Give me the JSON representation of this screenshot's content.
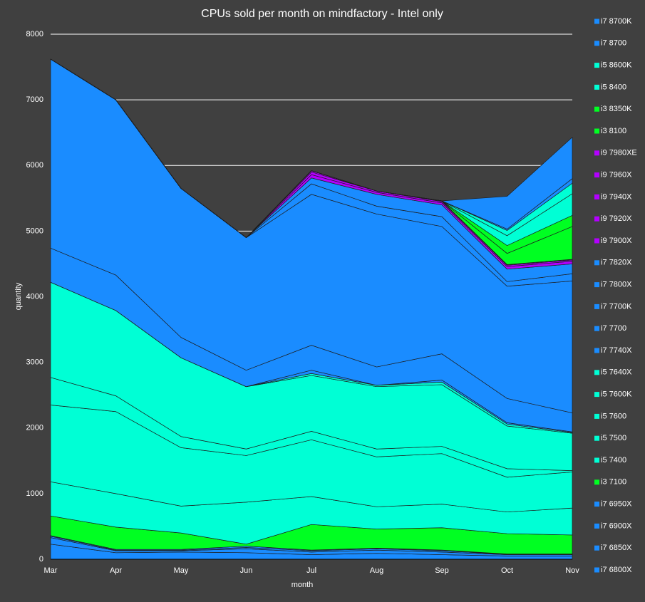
{
  "chart_data": {
    "type": "stacked_area",
    "title": "CPUs sold per month on mindfactory - Intel only",
    "x_label": "month",
    "y_label": "quantity",
    "categories": [
      "Mar",
      "Apr",
      "May",
      "Jun",
      "Jul",
      "Aug",
      "Sep",
      "Oct",
      "Nov"
    ],
    "ylim": [
      0,
      8000
    ],
    "yticks": [
      0,
      1000,
      2000,
      3000,
      4000,
      5000,
      6000,
      7000,
      8000
    ],
    "grid": true,
    "legend": "right",
    "series": [
      {
        "name": "i7 8700K",
        "color": "#1a8cff",
        "values": [
          0,
          0,
          0,
          0,
          0,
          0,
          0,
          500,
          630
        ]
      },
      {
        "name": "i7 8700",
        "color": "#1a8cff",
        "values": [
          0,
          0,
          0,
          0,
          0,
          0,
          0,
          20,
          70
        ]
      },
      {
        "name": "i5 8600K",
        "color": "#00ffd5",
        "values": [
          0,
          0,
          0,
          0,
          0,
          0,
          0,
          80,
          160
        ]
      },
      {
        "name": "i5 8400",
        "color": "#00ffd5",
        "values": [
          0,
          0,
          0,
          0,
          0,
          0,
          0,
          150,
          330
        ]
      },
      {
        "name": "i3 8350K",
        "color": "#00ff22",
        "values": [
          0,
          0,
          0,
          0,
          0,
          0,
          0,
          120,
          170
        ]
      },
      {
        "name": "i3 8100",
        "color": "#00ff22",
        "values": [
          0,
          0,
          0,
          0,
          0,
          0,
          0,
          170,
          500
        ]
      },
      {
        "name": "i9 7980XE",
        "color": "#b300ff",
        "values": [
          0,
          0,
          0,
          0,
          0,
          0,
          0,
          0,
          0
        ]
      },
      {
        "name": "i9 7960X",
        "color": "#b300ff",
        "values": [
          0,
          0,
          0,
          0,
          0,
          0,
          0,
          0,
          0
        ]
      },
      {
        "name": "i9 7940X",
        "color": "#b300ff",
        "values": [
          0,
          0,
          0,
          0,
          20,
          0,
          10,
          10,
          10
        ]
      },
      {
        "name": "i9 7920X",
        "color": "#b300ff",
        "values": [
          0,
          0,
          0,
          0,
          40,
          20,
          20,
          20,
          20
        ]
      },
      {
        "name": "i9 7900X",
        "color": "#b300ff",
        "values": [
          0,
          0,
          0,
          0,
          50,
          30,
          30,
          40,
          40
        ]
      },
      {
        "name": "i7 7820X",
        "color": "#1a8cff",
        "values": [
          0,
          0,
          0,
          0,
          90,
          180,
          180,
          190,
          150
        ]
      },
      {
        "name": "i7 7800X",
        "color": "#1a8cff",
        "values": [
          0,
          0,
          0,
          0,
          160,
          120,
          150,
          70,
          110
        ]
      },
      {
        "name": "i7 7700K",
        "color": "#1a8cff",
        "values": [
          2880,
          2670,
          2270,
          2020,
          2300,
          2330,
          1940,
          1710,
          2010
        ]
      },
      {
        "name": "i7 7700",
        "color": "#1a8cff",
        "values": [
          520,
          540,
          310,
          250,
          380,
          280,
          400,
          370,
          290
        ]
      },
      {
        "name": "i7 7740X",
        "color": "#1a8cff",
        "values": [
          0,
          0,
          0,
          0,
          50,
          0,
          30,
          20,
          10
        ]
      },
      {
        "name": "i5 7640X",
        "color": "#00ffd5",
        "values": [
          0,
          0,
          0,
          0,
          30,
          20,
          40,
          30,
          10
        ]
      },
      {
        "name": "i5 7600K",
        "color": "#00ffd5",
        "values": [
          1450,
          1300,
          1200,
          950,
          850,
          950,
          940,
          650,
          570
        ]
      },
      {
        "name": "i5 7600",
        "color": "#00ffd5",
        "values": [
          420,
          240,
          170,
          100,
          130,
          120,
          110,
          130,
          20
        ]
      },
      {
        "name": "i5 7500",
        "color": "#00ffd5",
        "values": [
          1170,
          1250,
          890,
          710,
          865,
          760,
          770,
          530,
          550
        ]
      },
      {
        "name": "i5 7400",
        "color": "#00ffd5",
        "values": [
          520,
          510,
          410,
          640,
          425,
          340,
          360,
          330,
          410
        ]
      },
      {
        "name": "i3 7100",
        "color": "#00ff22",
        "values": [
          300,
          340,
          250,
          30,
          390,
          290,
          340,
          310,
          290
        ]
      },
      {
        "name": "i7 6950X",
        "color": "#1a8cff",
        "values": [
          10,
          10,
          10,
          20,
          10,
          10,
          10,
          5,
          5
        ]
      },
      {
        "name": "i7 6900X",
        "color": "#1a8cff",
        "values": [
          20,
          10,
          10,
          20,
          20,
          20,
          20,
          5,
          5
        ]
      },
      {
        "name": "i7 6850X",
        "color": "#1a8cff",
        "values": [
          100,
          30,
          20,
          60,
          40,
          50,
          40,
          20,
          20
        ]
      },
      {
        "name": "i7 6800X",
        "color": "#1a8cff",
        "values": [
          230,
          100,
          110,
          100,
          70,
          90,
          70,
          50,
          50
        ]
      }
    ]
  }
}
